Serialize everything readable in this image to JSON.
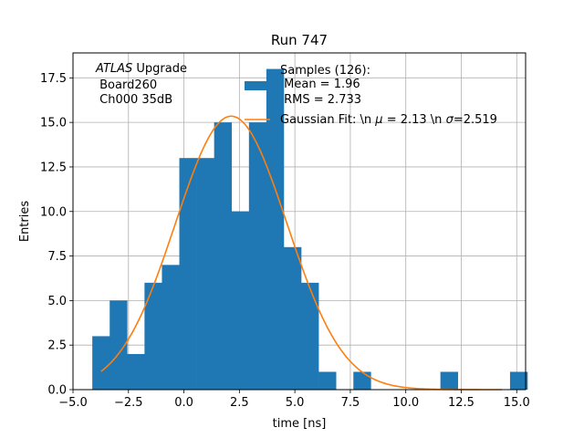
{
  "chart_data": {
    "type": "bar",
    "title": "Run 747",
    "xlabel": "time [ns]",
    "ylabel": "Entries",
    "xlim": [
      -5.0,
      15.4
    ],
    "ylim": [
      0,
      18.9
    ],
    "grid": true,
    "x_ticks": [
      -5.0,
      -2.5,
      0.0,
      2.5,
      5.0,
      7.5,
      10.0,
      12.5,
      15.0
    ],
    "x_tick_labels": [
      "−5.0",
      "−2.5",
      "0.0",
      "2.5",
      "5.0",
      "7.5",
      "10.0",
      "12.5",
      "15.0"
    ],
    "y_ticks": [
      0.0,
      2.5,
      5.0,
      7.5,
      10.0,
      12.5,
      15.0,
      17.5
    ],
    "y_tick_labels": [
      "0.0",
      "2.5",
      "5.0",
      "7.5",
      "10.0",
      "12.5",
      "15.0",
      "17.5"
    ],
    "bar_color": "#1f77b4",
    "fit_color": "#ff7f0e",
    "bin_start": -4.13,
    "bin_width": 0.7845,
    "bin_counts": [
      3,
      5,
      2,
      6,
      7,
      13,
      13,
      15,
      10,
      15,
      18,
      8,
      6,
      1,
      0,
      1,
      0,
      0,
      0,
      0,
      1,
      0,
      0,
      0,
      1
    ],
    "fit": {
      "mu": 2.13,
      "sigma": 2.519,
      "amplitude": 15.35,
      "x_range": [
        -3.73,
        14.33
      ]
    },
    "annotation": {
      "experiment": "ATLAS",
      "experiment_suffix": " Upgrade",
      "line2": " Board260",
      "line3": " Ch000 35dB"
    },
    "legend": {
      "position": "top-right",
      "hist_label_line1": "Samples (126):",
      "hist_label_line2": " Mean = 1.96",
      "hist_label_line3": " RMS = 2.733",
      "fit_label_prefix": "Gaussian Fit: \\n ",
      "fit_label_mu_sym": "μ",
      "fit_label_mid": " = 2.13 \\n ",
      "fit_label_sigma_sym": "σ",
      "fit_label_suffix": "=2.519"
    }
  }
}
